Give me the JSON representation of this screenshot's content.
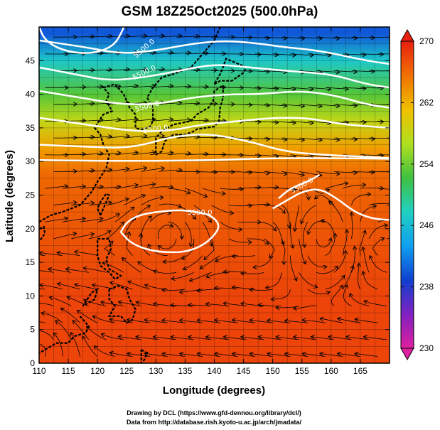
{
  "chart_data": {
    "type": "heatmap",
    "title": "GSM 18Z25Oct2025 (500.0hPa)",
    "xlabel": "Longitude (degrees)",
    "ylabel": "Latitude (degrees)",
    "xlim": [
      110,
      170
    ],
    "ylim": [
      0,
      50
    ],
    "xticks": [
      110,
      115,
      120,
      125,
      130,
      135,
      140,
      145,
      150,
      155,
      160,
      165
    ],
    "yticks": [
      0,
      5,
      10,
      15,
      20,
      25,
      30,
      35,
      40,
      45
    ],
    "grid": true,
    "colorbar": {
      "min": 230,
      "max": 270,
      "ticks": [
        230,
        238,
        246,
        254,
        262,
        270
      ],
      "colors": [
        "#e020a0",
        "#8020c0",
        "#1040d0",
        "#10a0f0",
        "#20d0c0",
        "#40c040",
        "#b0e020",
        "#f0c000",
        "#f07000",
        "#e82010"
      ]
    },
    "temperature_field_description_samples": [
      {
        "lat": 49,
        "temperature": 240
      },
      {
        "lat": 45,
        "temperature": 247
      },
      {
        "lat": 40,
        "temperature": 253
      },
      {
        "lat": 36,
        "temperature": 258
      },
      {
        "lat": 32,
        "temperature": 263
      },
      {
        "lat": 28,
        "temperature": 266
      },
      {
        "lat": 20,
        "temperature": 267
      },
      {
        "lat": 10,
        "temperature": 268
      },
      {
        "lat": 0,
        "temperature": 268
      }
    ],
    "contours": {
      "variable": "geopotential height (m)",
      "label": "5500.0",
      "lines": [
        {
          "points": [
            [
              110,
              48
            ],
            [
              118,
              47
            ],
            [
              124,
              46
            ],
            [
              130,
              46.5
            ],
            [
              136,
              47.5
            ],
            [
              142,
              48
            ],
            [
              148,
              47.5
            ],
            [
              152,
              47
            ],
            [
              158,
              46.5
            ],
            [
              166,
              45
            ],
            [
              170,
              44.5
            ]
          ]
        },
        {
          "points": [
            [
              110,
              44
            ],
            [
              116,
              43
            ],
            [
              122,
              42
            ],
            [
              128,
              42.5
            ],
            [
              134,
              43.5
            ],
            [
              140,
              44.5
            ],
            [
              146,
              44
            ],
            [
              152,
              43.5
            ],
            [
              160,
              43
            ],
            [
              166,
              41.5
            ],
            [
              170,
              41
            ]
          ]
        },
        {
          "points": [
            [
              110,
              40.5
            ],
            [
              117,
              39.5
            ],
            [
              124,
              38.5
            ],
            [
              130,
              38.5
            ],
            [
              136,
              39.5
            ],
            [
              142,
              40
            ],
            [
              148,
              40
            ],
            [
              154,
              40.5
            ],
            [
              160,
              40
            ],
            [
              166,
              38.5
            ],
            [
              170,
              38
            ]
          ]
        },
        {
          "points": [
            [
              110,
              36.5
            ],
            [
              118,
              35.5
            ],
            [
              126,
              34.5
            ],
            [
              132,
              34.5
            ],
            [
              138,
              35.5
            ],
            [
              144,
              36
            ],
            [
              150,
              36.5
            ],
            [
              156,
              36.5
            ],
            [
              162,
              35.5
            ],
            [
              170,
              35
            ]
          ]
        },
        {
          "points": [
            [
              110,
              32.5
            ],
            [
              118,
              32.2
            ],
            [
              124,
              32
            ],
            [
              128,
              32.5
            ],
            [
              132,
              33.5
            ],
            [
              136,
              34
            ],
            [
              140,
              34
            ],
            [
              146,
              33
            ],
            [
              152,
              31.5
            ],
            [
              158,
              31
            ],
            [
              164,
              30.8
            ],
            [
              170,
              30.5
            ]
          ]
        },
        {
          "points": [
            [
              110,
              30.2
            ],
            [
              120,
              30.1
            ],
            [
              130,
              30.1
            ],
            [
              140,
              30.2
            ],
            [
              150,
              30.5
            ],
            [
              160,
              30.5
            ],
            [
              170,
              30.4
            ]
          ]
        },
        {
          "points": [
            [
              151,
              24.5
            ],
            [
              153,
              26
            ],
            [
              156,
              27
            ],
            [
              158,
              28
            ]
          ]
        },
        {
          "points": [
            [
              150,
              23
            ],
            [
              153,
              24.5
            ],
            [
              155,
              25.5
            ],
            [
              158,
              26
            ],
            [
              161,
              24.5
            ],
            [
              164,
              22.5
            ],
            [
              167,
              21.5
            ],
            [
              170,
              21.3
            ]
          ]
        },
        {
          "closed": true,
          "points": [
            [
              124,
              19.5
            ],
            [
              125,
              21
            ],
            [
              127,
              22
            ],
            [
              130,
              22.5
            ],
            [
              134,
              22.8
            ],
            [
              137,
              22.5
            ],
            [
              139.5,
              22
            ],
            [
              141,
              20.5
            ],
            [
              140,
              19
            ],
            [
              138,
              17.5
            ],
            [
              135,
              16.5
            ],
            [
              131,
              16.5
            ],
            [
              128,
              17
            ],
            [
              125.5,
              18
            ]
          ]
        },
        {
          "points": [
            [
              110,
              50
            ],
            [
              111,
              48
            ],
            [
              114,
              46.5
            ],
            [
              118,
              46
            ],
            [
              121,
              46.5
            ],
            [
              123,
              47.5
            ],
            [
              124,
              49
            ],
            [
              124.5,
              50
            ]
          ]
        }
      ],
      "labels": [
        {
          "lon": 128,
          "lat": 46.8,
          "text": "5500.0",
          "angle": -40
        },
        {
          "lon": 128,
          "lat": 43.2,
          "text": "5500.0",
          "angle": -25
        },
        {
          "lon": 128.5,
          "lat": 38.2,
          "text": "5500.0",
          "angle": -15
        },
        {
          "lon": 130,
          "lat": 34.8,
          "text": "5500.0",
          "angle": -8
        },
        {
          "lon": 137.5,
          "lat": 22.4,
          "text": "5500.0",
          "angle": 0
        },
        {
          "lon": 155,
          "lat": 26.4,
          "text": "5500.0",
          "angle": -30
        }
      ]
    },
    "streamlines": {
      "variable": "wind",
      "vortices": [
        {
          "lon": 132,
          "lat": 19.5,
          "kind": "anticyclonic circulation"
        },
        {
          "lon": 158.5,
          "lat": 18,
          "kind": "cyclonic circulation"
        },
        {
          "lon": 110,
          "lat": 2,
          "kind": "circulation"
        }
      ]
    }
  },
  "credits": {
    "line1": "Drawing by DCL (https://www.gfd-dennou.org/library/dcl/)",
    "line2": "Data from http://database.rish.kyoto-u.ac.jp/arch/jmadata/"
  }
}
